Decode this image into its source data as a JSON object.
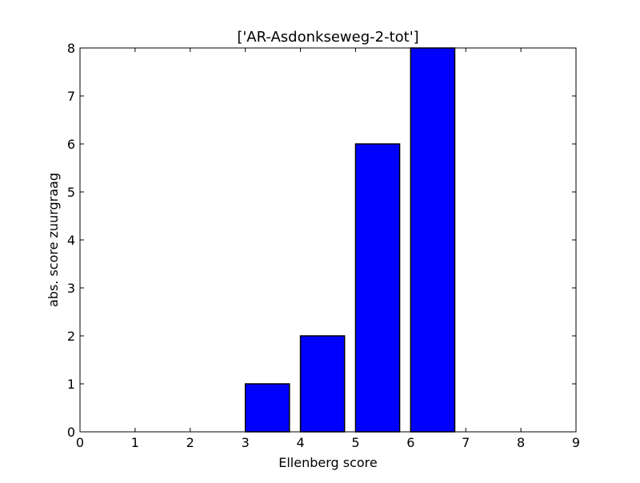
{
  "chart_data": {
    "type": "bar",
    "title": "['AR-Asdonkseweg-2-tot']",
    "xlabel": "Ellenberg score",
    "ylabel": "abs. score zuurgraag",
    "categories": [
      0,
      1,
      2,
      3,
      4,
      5,
      6,
      7,
      8
    ],
    "values": [
      0,
      0,
      0,
      1,
      2,
      6,
      8,
      0,
      0
    ],
    "bar_width": 0.8,
    "xlim": [
      0,
      9
    ],
    "ylim": [
      0,
      8
    ],
    "xticks": [
      0,
      1,
      2,
      3,
      4,
      5,
      6,
      7,
      8,
      9
    ],
    "yticks": [
      0,
      1,
      2,
      3,
      4,
      5,
      6,
      7,
      8
    ],
    "bar_color": "#0000ff",
    "edge_color": "#000000",
    "grid": false,
    "legend": "none"
  }
}
